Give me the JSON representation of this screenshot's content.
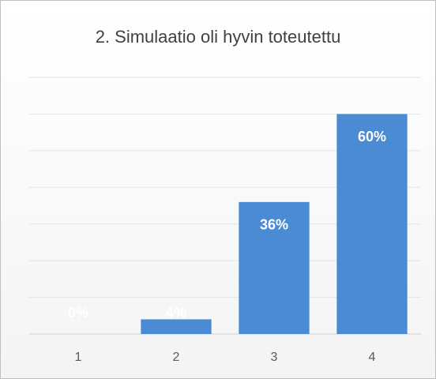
{
  "chart_data": {
    "type": "bar",
    "title": "2. Simulaatio oli hyvin toteutettu",
    "categories": [
      "1",
      "2",
      "3",
      "4"
    ],
    "values": [
      0,
      4,
      36,
      60
    ],
    "value_labels": [
      "0%",
      "4%",
      "36%",
      "60%"
    ],
    "color": "#4a8bd3",
    "ylim": [
      0,
      70
    ],
    "yticks": [
      0,
      10,
      20,
      30,
      40,
      50,
      60,
      70
    ],
    "grid": true
  }
}
